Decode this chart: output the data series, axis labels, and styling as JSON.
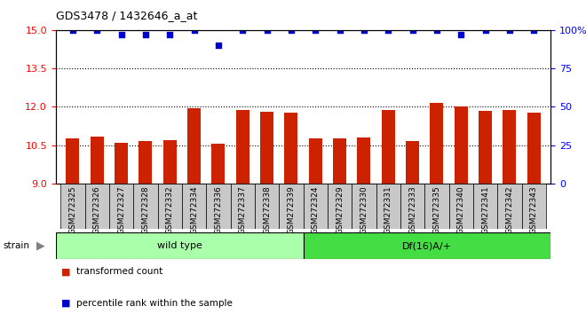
{
  "title": "GDS3478 / 1432646_a_at",
  "samples": [
    "GSM272325",
    "GSM272326",
    "GSM272327",
    "GSM272328",
    "GSM272332",
    "GSM272334",
    "GSM272336",
    "GSM272337",
    "GSM272338",
    "GSM272339",
    "GSM272324",
    "GSM272329",
    "GSM272330",
    "GSM272331",
    "GSM272333",
    "GSM272335",
    "GSM272340",
    "GSM272341",
    "GSM272342",
    "GSM272343"
  ],
  "bar_values": [
    10.75,
    10.82,
    10.6,
    10.68,
    10.7,
    11.93,
    10.55,
    11.88,
    11.82,
    11.78,
    10.78,
    10.76,
    10.8,
    11.88,
    10.68,
    12.15,
    12.0,
    11.85,
    11.88,
    11.78
  ],
  "dot_values": [
    100,
    100,
    97,
    97,
    97,
    100,
    90,
    100,
    100,
    100,
    100,
    100,
    100,
    100,
    100,
    100,
    97,
    100,
    100,
    100
  ],
  "bar_color": "#cc2200",
  "dot_color": "#0000cc",
  "ylim_left": [
    9,
    15
  ],
  "ylim_right": [
    0,
    100
  ],
  "yticks_left": [
    9,
    10.5,
    12,
    13.5,
    15
  ],
  "yticks_right": [
    0,
    25,
    50,
    75,
    100
  ],
  "groups": [
    {
      "label": "wild type",
      "start": 0,
      "end": 10,
      "color": "#aaffaa"
    },
    {
      "label": "Df(16)A/+",
      "start": 10,
      "end": 20,
      "color": "#44dd44"
    }
  ],
  "strain_label": "strain",
  "legend_items": [
    {
      "label": "transformed count",
      "color": "#cc2200"
    },
    {
      "label": "percentile rank within the sample",
      "color": "#0000cc"
    }
  ],
  "bar_color_tick_bg": "#c8c8c8",
  "bar_width": 0.55,
  "plot_bg": "#ffffff",
  "spine_color": "#000000"
}
